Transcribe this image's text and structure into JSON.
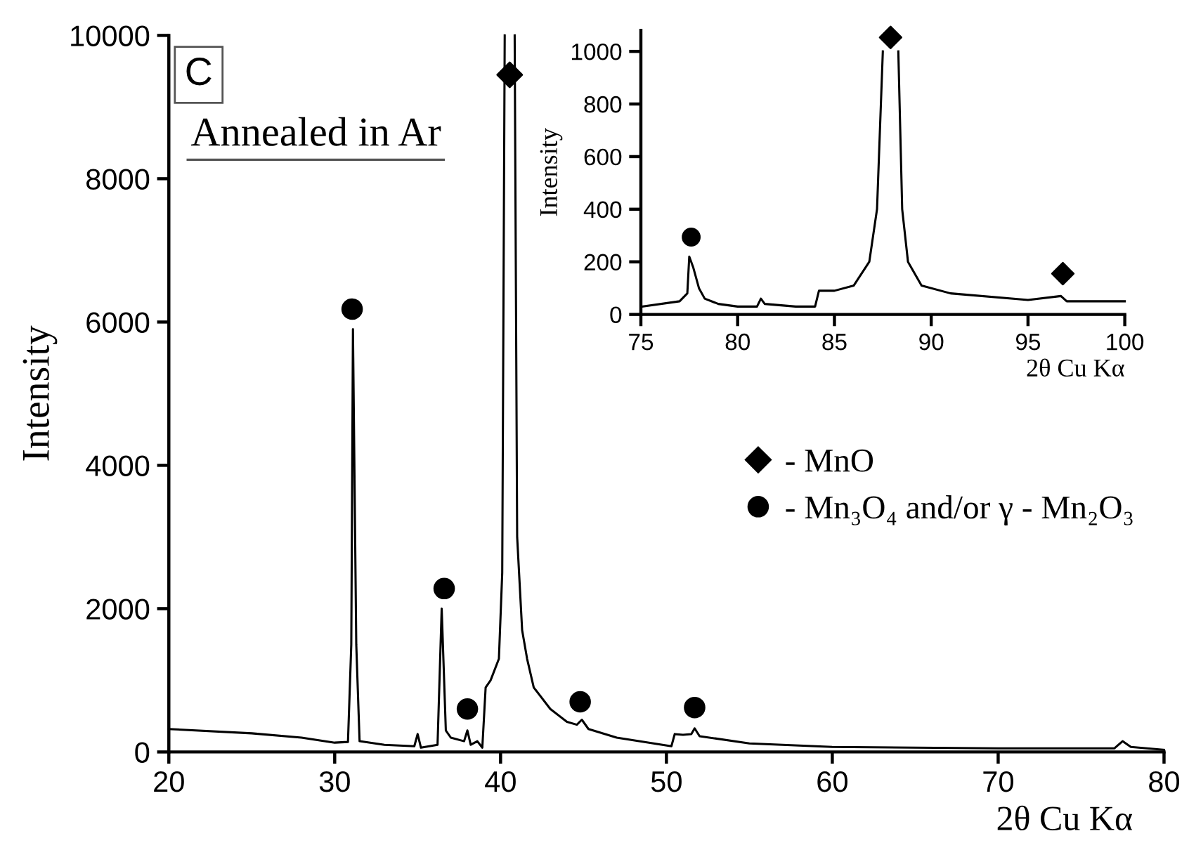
{
  "chart_data": [
    {
      "type": "line",
      "xlabel": "2θ Cu Kα",
      "ylabel": "Intensity",
      "xlim": [
        20,
        80
      ],
      "ylim": [
        0,
        10000
      ],
      "xticks": [
        20,
        30,
        40,
        50,
        60,
        70,
        80
      ],
      "yticks": [
        0,
        2000,
        4000,
        6000,
        8000,
        10000
      ],
      "grid": false,
      "legend": "right",
      "annotations": [
        "C",
        "Annealed in Ar"
      ],
      "series": [
        {
          "color": "#000000",
          "x": [
            20,
            25,
            28,
            30,
            30.8,
            31.0,
            31.1,
            31.3,
            31.5,
            33,
            34.8,
            35.0,
            35.2,
            36.2,
            36.45,
            36.7,
            37.0,
            37.8,
            38.0,
            38.2,
            38.6,
            38.9,
            39.1,
            39.4,
            39.9,
            40.1,
            40.25,
            40.55,
            40.85,
            41.0,
            41.3,
            41.6,
            42,
            43,
            44,
            44.6,
            44.9,
            45.3,
            47,
            50.3,
            50.5,
            51,
            51.5,
            51.7,
            52,
            55,
            60,
            70,
            77,
            77.5,
            78,
            80
          ],
          "values": [
            320,
            260,
            200,
            130,
            140,
            1500,
            5900,
            1500,
            150,
            100,
            80,
            250,
            60,
            100,
            2000,
            300,
            200,
            150,
            300,
            100,
            150,
            60,
            900,
            1000,
            1300,
            2500,
            10000,
            null,
            10000,
            3000,
            1700,
            1300,
            900,
            600,
            420,
            380,
            450,
            320,
            200,
            80,
            250,
            240,
            250,
            330,
            220,
            120,
            70,
            50,
            50,
            150,
            70,
            30
          ]
        },
        {
          "type": "scatter",
          "name": "- MnO",
          "marker": "diamond",
          "color": "#000000",
          "x": [
            40.55
          ],
          "values": [
            9450
          ]
        },
        {
          "type": "scatter",
          "name": "- Mn₃O₄ and/or γ - Mn₂O₃",
          "marker": "circle",
          "color": "#000000",
          "x": [
            31.05,
            36.6,
            38.0,
            44.8,
            51.7
          ],
          "values": [
            6180,
            2280,
            600,
            700,
            620
          ]
        }
      ]
    },
    {
      "type": "line",
      "xlabel": "2θ Cu Kα",
      "ylabel": "Intensity",
      "xlim": [
        75,
        100
      ],
      "ylim": [
        0,
        1080
      ],
      "xticks": [
        75,
        80,
        85,
        90,
        95,
        100
      ],
      "yticks": [
        0,
        200,
        400,
        600,
        800,
        1000
      ],
      "grid": false,
      "series": [
        {
          "color": "#000000",
          "x": [
            75.1,
            77,
            77.4,
            77.5,
            77.7,
            78.0,
            78.3,
            79,
            80,
            81,
            81.2,
            81.4,
            83,
            84,
            84.2,
            85,
            86,
            86.8,
            87.2,
            87.5,
            87.9,
            88.3,
            88.5,
            88.8,
            89.5,
            91,
            95,
            96.7,
            97,
            100
          ],
          "values": [
            30,
            50,
            80,
            220,
            180,
            100,
            60,
            40,
            30,
            30,
            60,
            40,
            30,
            30,
            90,
            90,
            110,
            200,
            400,
            1000,
            null,
            1000,
            400,
            200,
            110,
            80,
            55,
            70,
            50,
            50
          ]
        },
        {
          "type": "scatter",
          "marker": "diamond",
          "color": "#000000",
          "x": [
            87.9,
            96.8
          ],
          "values": [
            1053,
            155
          ]
        },
        {
          "type": "scatter",
          "marker": "circle",
          "color": "#000000",
          "x": [
            77.6
          ],
          "values": [
            294
          ]
        }
      ]
    }
  ]
}
